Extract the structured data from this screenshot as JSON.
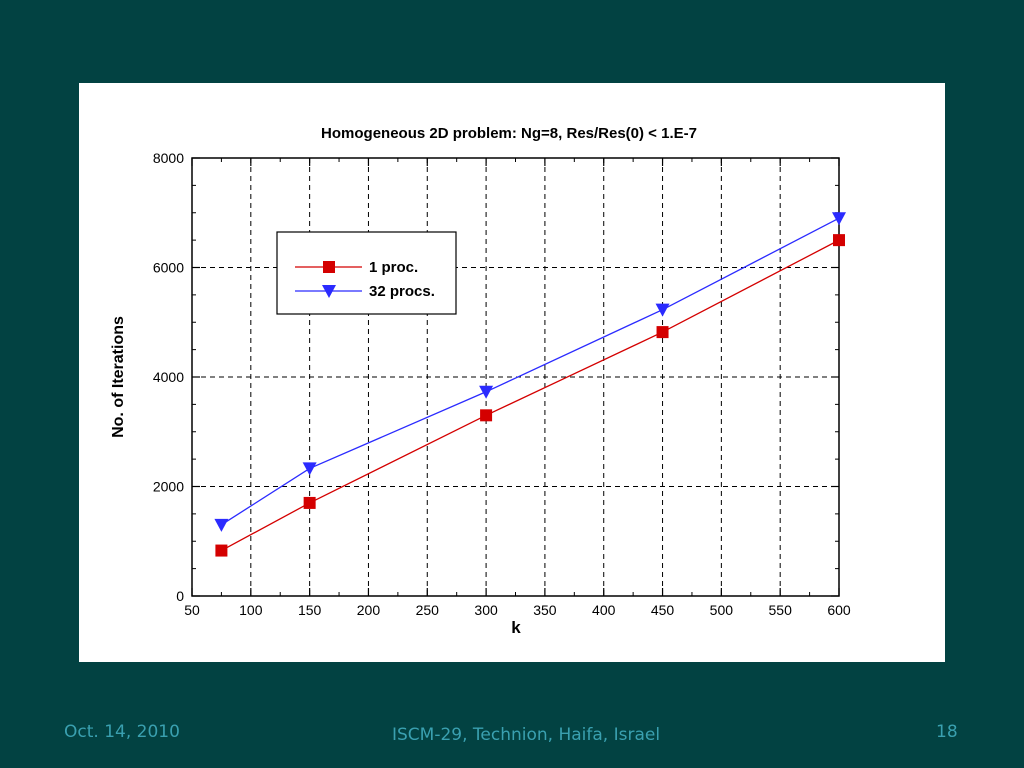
{
  "footer": {
    "date": "Oct. 14, 2010",
    "venue": "ISCM-29, Technion, Haifa, Israel",
    "page": "18"
  },
  "chart_data": {
    "type": "line",
    "title": "Homogeneous 2D problem:  Ng=8,  Res/Res(0) < 1.E-7",
    "xlabel": "k",
    "ylabel": "No. of  Iterations",
    "xlim": [
      50,
      600
    ],
    "ylim": [
      0,
      8000
    ],
    "xticks": [
      50,
      100,
      150,
      200,
      250,
      300,
      350,
      400,
      450,
      500,
      550,
      600
    ],
    "yticks": [
      0,
      2000,
      4000,
      6000,
      8000
    ],
    "grid": true,
    "legend_position": "upper-left",
    "series": [
      {
        "name": "1  proc.",
        "color": "#d40000",
        "marker": "square",
        "x": [
          75,
          150,
          300,
          450,
          600
        ],
        "y": [
          830,
          1700,
          3300,
          4820,
          6500
        ]
      },
      {
        "name": "32  procs.",
        "color": "#2b2bff",
        "marker": "triangle-down",
        "x": [
          75,
          150,
          300,
          450,
          600
        ],
        "y": [
          1300,
          2330,
          3730,
          5230,
          6900
        ]
      }
    ]
  }
}
